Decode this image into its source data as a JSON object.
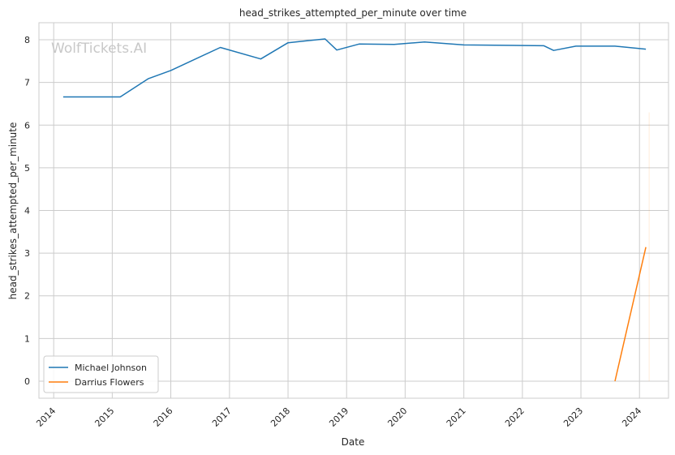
{
  "chart_data": {
    "type": "line",
    "title": "head_strikes_attempted_per_minute over time",
    "xlabel": "Date",
    "ylabel": "head_strikes_attempted_per_minute",
    "watermark": "WolfTickets.AI",
    "ylim": [
      -0.4,
      8.4
    ],
    "xlim": [
      "2013-10-01",
      "2024-06-30"
    ],
    "x_ticks": [
      "2014",
      "2015",
      "2016",
      "2017",
      "2018",
      "2019",
      "2020",
      "2021",
      "2022",
      "2023",
      "2024"
    ],
    "y_ticks": [
      "0",
      "1",
      "2",
      "3",
      "4",
      "5",
      "6",
      "7",
      "8"
    ],
    "grid": true,
    "legend_position": "lower-left",
    "series": [
      {
        "name": "Michael Johnson",
        "color": "#1f77b4",
        "x": [
          "2014-03-01",
          "2015-02-20",
          "2015-08-15",
          "2016-01-01",
          "2016-11-05",
          "2017-07-15",
          "2018-01-01",
          "2018-08-20",
          "2018-11-01",
          "2019-03-20",
          "2019-10-25",
          "2020-05-01",
          "2021-01-01",
          "2022-05-15",
          "2022-07-15",
          "2022-12-01",
          "2023-08-01",
          "2024-02-10"
        ],
        "values": [
          6.66,
          6.66,
          7.09,
          7.28,
          7.82,
          7.55,
          7.93,
          8.02,
          7.76,
          7.9,
          7.89,
          7.95,
          7.88,
          7.86,
          7.75,
          7.85,
          7.85,
          7.78
        ]
      },
      {
        "name": "Darrius Flowers",
        "color": "#ff7f0e",
        "x": [
          "2023-08-01",
          "2024-02-10"
        ],
        "values": [
          0,
          3.14
        ]
      }
    ]
  }
}
